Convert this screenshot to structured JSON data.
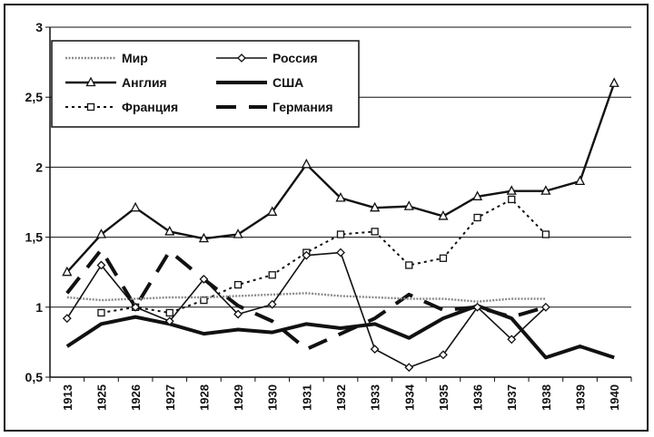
{
  "chart_data": {
    "type": "line",
    "title": "",
    "xlabel": "",
    "ylabel": "",
    "ylim": [
      0.5,
      3
    ],
    "yticks": [
      "0,5",
      "1",
      "1,5",
      "2",
      "2,5",
      "3"
    ],
    "categories": [
      "1913",
      "1925",
      "1926",
      "1927",
      "1928",
      "1929",
      "1930",
      "1931",
      "1932",
      "1933",
      "1934",
      "1935",
      "1936",
      "1937",
      "1938",
      "1939",
      "1940"
    ],
    "grid": true,
    "legend_position": "top-left",
    "series": [
      {
        "name": "Мир",
        "style": "gray-dotted",
        "values": [
          1.07,
          1.05,
          1.06,
          1.07,
          1.07,
          1.08,
          1.09,
          1.1,
          1.08,
          1.07,
          1.06,
          1.06,
          1.04,
          1.06,
          1.06,
          null,
          null
        ]
      },
      {
        "name": "Россия",
        "style": "thin-diamond",
        "values": [
          0.92,
          1.3,
          1.0,
          0.9,
          1.2,
          0.95,
          1.02,
          1.37,
          1.39,
          0.7,
          0.57,
          0.66,
          1.0,
          0.77,
          1.0,
          null,
          null
        ]
      },
      {
        "name": "Англия",
        "style": "triangle",
        "values": [
          1.25,
          1.52,
          1.71,
          1.54,
          1.49,
          1.52,
          1.68,
          2.02,
          1.78,
          1.71,
          1.72,
          1.65,
          1.79,
          1.83,
          1.83,
          1.9,
          2.6
        ]
      },
      {
        "name": "США",
        "style": "thick-solid",
        "values": [
          0.72,
          0.88,
          0.93,
          0.88,
          0.81,
          0.84,
          0.82,
          0.88,
          0.85,
          0.88,
          0.78,
          0.92,
          1.01,
          0.92,
          0.64,
          0.72,
          0.64
        ]
      },
      {
        "name": "Франция",
        "style": "dashed-square",
        "values": [
          null,
          0.96,
          1.0,
          0.96,
          1.05,
          1.16,
          1.23,
          1.39,
          1.52,
          1.54,
          1.3,
          1.35,
          1.64,
          1.77,
          1.52,
          null,
          null
        ]
      },
      {
        "name": "Германия",
        "style": "long-dash",
        "values": [
          1.1,
          1.41,
          1.0,
          1.4,
          1.2,
          1.01,
          0.9,
          0.7,
          0.81,
          0.92,
          1.09,
          0.98,
          1.0,
          0.93,
          1.0,
          null,
          null
        ]
      }
    ]
  }
}
